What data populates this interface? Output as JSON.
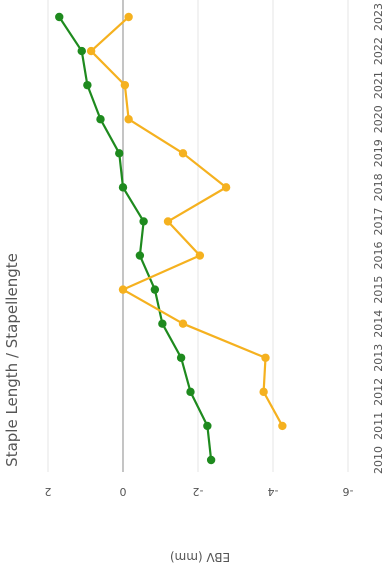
{
  "chart_data": {
    "type": "line",
    "title": "Staple Length / Stapellengte",
    "xlabel": "",
    "ylabel": "EBV (mm)",
    "x": [
      "2010",
      "2011",
      "2012",
      "2013",
      "2014",
      "2015",
      "2016",
      "2017",
      "2018",
      "2019",
      "2020",
      "2021",
      "2022",
      "2023"
    ],
    "ylim": [
      -6,
      2
    ],
    "y_ticks": [
      "2",
      "0",
      "-2",
      "-4",
      "-6"
    ],
    "grid": true,
    "orientation": "rotated-180",
    "colors": {
      "green": "#1e8a1e",
      "orange": "#f5b11f"
    },
    "series": [
      {
        "color": "green",
        "values": [
          -2.35,
          -2.25,
          -1.8,
          -1.55,
          -1.05,
          -0.85,
          -0.45,
          -0.55,
          0.0,
          0.1,
          0.6,
          0.95,
          1.1,
          1.7
        ]
      },
      {
        "color": "orange",
        "values": [
          null,
          -4.25,
          -3.75,
          -3.8,
          -1.6,
          0.0,
          -2.05,
          -1.2,
          -2.75,
          -1.6,
          -0.15,
          -0.05,
          0.85,
          -0.15
        ]
      }
    ]
  }
}
